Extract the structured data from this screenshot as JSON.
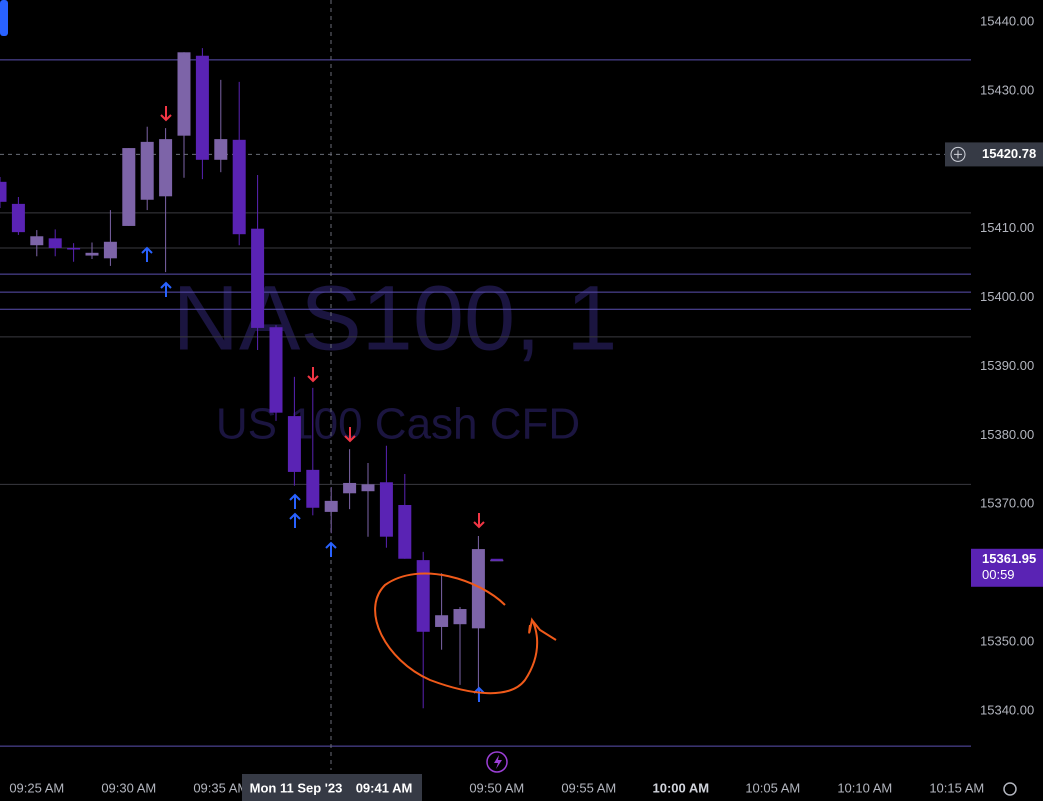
{
  "chart_data": {
    "type": "candlestick",
    "symbol": "NAS100, 1",
    "description": "US 100 Cash CFD",
    "categories": [
      null,
      null,
      "09:25 AM",
      null,
      null,
      null,
      null,
      "09:30 AM",
      null,
      null,
      null,
      null,
      "09:35 AM",
      null,
      null,
      null,
      null,
      null,
      null,
      null,
      null,
      null,
      null,
      null,
      null,
      null,
      null,
      "09:50 AM"
    ],
    "open": [
      15416.8,
      15413.6,
      15407.6,
      15408.6,
      15407.2,
      15406.1,
      15405.7,
      15410.4,
      15414.2,
      15414.7,
      15423.5,
      15435.1,
      15420.0,
      15422.9,
      15410.0,
      15395.7,
      15382.8,
      15375.0,
      15368.9,
      15371.6,
      15371.9,
      15373.2,
      15369.9,
      15361.9,
      15352.2,
      15352.6,
      15352.0,
      15361.95
    ],
    "high": [
      15417.5,
      15414.6,
      15409.8,
      15409.9,
      15407.9,
      15408.0,
      15412.7,
      15421.7,
      15424.8,
      15424.6,
      15435.6,
      15436.2,
      15431.6,
      15431.3,
      15417.8,
      15396.0,
      15388.5,
      15386.9,
      15372.5,
      15378.0,
      15376.0,
      15378.5,
      15374.4,
      15363.1,
      15360.0,
      15355.1,
      15365.4,
      15361.95
    ],
    "low": [
      15413.0,
      15409.1,
      15406.0,
      15406.0,
      15405.2,
      15405.6,
      15404.6,
      15410.4,
      15412.7,
      15403.7,
      15417.4,
      15417.2,
      15418.2,
      15407.6,
      15392.4,
      15382.1,
      15372.7,
      15368.4,
      15365.8,
      15369.3,
      15365.3,
      15363.7,
      15362.1,
      15340.4,
      15348.9,
      15343.8,
      15341.6,
      15361.95
    ],
    "close": [
      15413.9,
      15409.5,
      15408.9,
      15407.2,
      15407.0,
      15406.5,
      15408.1,
      15421.7,
      15422.6,
      15423.0,
      15435.6,
      15420.0,
      15423.0,
      15409.2,
      15395.6,
      15383.3,
      15374.7,
      15369.5,
      15370.5,
      15373.1,
      15372.9,
      15365.3,
      15362.1,
      15351.5,
      15353.9,
      15354.8,
      15363.5,
      15361.95
    ],
    "up_color": "#7d64a8",
    "down_color": "#5a23b4",
    "ylim": [
      15331.44,
      15443.19
    ],
    "yticks": [
      {
        "value": 15340,
        "label": "15340.00"
      },
      {
        "value": 15350,
        "label": "15350.00"
      },
      {
        "value": 15360,
        "label": "15360.00"
      },
      {
        "value": 15370,
        "label": "15370.00"
      },
      {
        "value": 15380,
        "label": "15380.00"
      },
      {
        "value": 15390,
        "label": "15390.00"
      },
      {
        "value": 15400,
        "label": "15400.00"
      },
      {
        "value": 15410,
        "label": "15410.00"
      },
      {
        "value": 15420,
        "label": "15420.00"
      },
      {
        "value": 15430,
        "label": "15430.00"
      },
      {
        "value": 15440,
        "label": "15440.00"
      }
    ],
    "future_time_labels": [
      "09:55 AM",
      "10:00 AM",
      "10:05 AM",
      "10:10 AM",
      "10:15 AM"
    ],
    "levels": [
      15434.5,
      15403.4,
      15400.8,
      15398.3,
      15334.9
    ],
    "level_color": "#5b4fb0",
    "gray_levels": [
      15412.3,
      15407.2,
      15394.3,
      15372.9
    ],
    "crosshair_price": {
      "value": 15420.78,
      "label": "15420.78"
    },
    "crosshair_date": "Mon 11 Sep '23",
    "crosshair_time": "09:41 AM",
    "last_price": {
      "value": 15361.95,
      "label": "15361.95"
    },
    "countdown": "00:59"
  }
}
